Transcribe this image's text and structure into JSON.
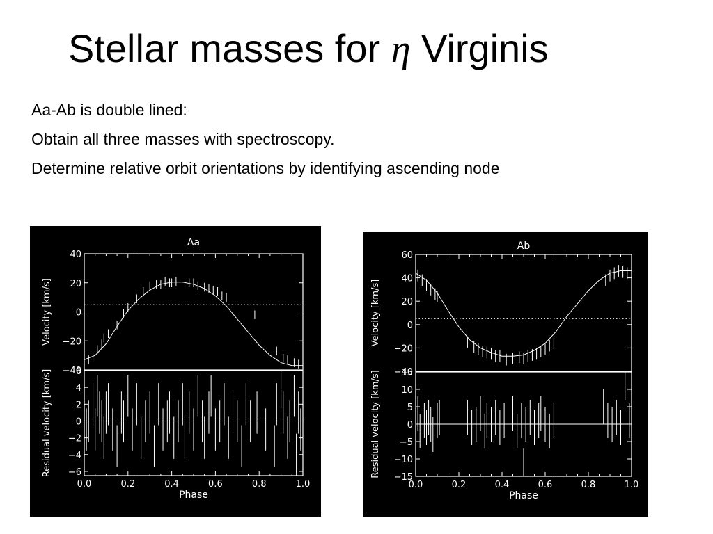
{
  "slide": {
    "title_prefix": "Stellar masses for ",
    "title_symbol": "η",
    "title_suffix": " Virginis",
    "bullets": [
      "Aa-Ab is double lined:",
      "Obtain all three masses with spectroscopy.",
      "Determine relative orbit orientations by identifying ascending node"
    ]
  },
  "colors": {
    "panel_background": "#000000",
    "foreground": "#ffffff",
    "slide_background": "#ffffff"
  },
  "chart_data": [
    {
      "type": "scatter",
      "title": "Aa",
      "xlabel": "Phase",
      "xlim": [
        0.0,
        1.0
      ],
      "x_ticks": [
        "0.0",
        "0.2",
        "0.4",
        "0.6",
        "0.8",
        "1.0"
      ],
      "top": {
        "ylabel": "Velocity [km/s]",
        "ylim": [
          -40,
          40
        ],
        "y_ticks": [
          "40",
          "20",
          "0",
          "−20",
          "−40"
        ],
        "y_tick_values": [
          40,
          20,
          0,
          -20,
          -40
        ],
        "systemic_velocity": 5,
        "model_curve": {
          "x": [
            0.0,
            0.05,
            0.1,
            0.15,
            0.2,
            0.25,
            0.3,
            0.35,
            0.4,
            0.45,
            0.5,
            0.55,
            0.6,
            0.65,
            0.7,
            0.75,
            0.8,
            0.85,
            0.9,
            0.95,
            1.0
          ],
          "y": [
            -33,
            -30,
            -22,
            -10,
            1,
            9,
            15,
            19,
            20.5,
            20.5,
            19,
            16,
            11,
            4,
            -5,
            -14,
            -23,
            -30,
            -35,
            -37,
            -37
          ]
        },
        "points": {
          "x": [
            0.02,
            0.04,
            0.06,
            0.08,
            0.09,
            0.11,
            0.15,
            0.18,
            0.2,
            0.24,
            0.27,
            0.3,
            0.33,
            0.35,
            0.37,
            0.39,
            0.4,
            0.42,
            0.48,
            0.5,
            0.52,
            0.55,
            0.57,
            0.59,
            0.61,
            0.63,
            0.65,
            0.78,
            0.88,
            0.91,
            0.93,
            0.96,
            0.98
          ],
          "y": [
            -33,
            -31,
            -26,
            -22,
            -18,
            -15,
            -9,
            -1,
            3,
            9,
            14,
            18,
            19,
            19,
            21,
            20,
            20,
            21,
            20,
            20,
            18,
            17,
            16,
            15,
            14,
            11,
            10,
            -2,
            -27,
            -32,
            -33,
            -35,
            -36
          ],
          "err": [
            3,
            3,
            3,
            3,
            3,
            3,
            3,
            3,
            3,
            3,
            3,
            3,
            3,
            3,
            3,
            3,
            3,
            3,
            3,
            3,
            3,
            3,
            3,
            3,
            3,
            3,
            3,
            3,
            3,
            3,
            3,
            3,
            3
          ]
        }
      },
      "bottom": {
        "ylabel": "Residual velocity [km/s]",
        "ylim": [
          -6.5,
          6
        ],
        "y_ticks": [
          "6",
          "4",
          "2",
          "0",
          "−2",
          "−4",
          "−6"
        ],
        "y_tick_values": [
          6,
          4,
          2,
          0,
          -2,
          -4,
          -6
        ],
        "points": {
          "x": [
            0.01,
            0.02,
            0.04,
            0.05,
            0.06,
            0.07,
            0.08,
            0.09,
            0.1,
            0.11,
            0.13,
            0.15,
            0.17,
            0.18,
            0.2,
            0.22,
            0.24,
            0.26,
            0.28,
            0.3,
            0.32,
            0.34,
            0.36,
            0.38,
            0.39,
            0.41,
            0.43,
            0.45,
            0.46,
            0.48,
            0.5,
            0.52,
            0.54,
            0.55,
            0.57,
            0.58,
            0.6,
            0.62,
            0.64,
            0.66,
            0.68,
            0.7,
            0.72,
            0.74,
            0.76,
            0.79,
            0.83,
            0.87,
            0.88,
            0.9,
            0.91,
            0.93,
            0.94,
            0.96,
            0.97,
            0.98,
            0.99
          ],
          "y": [
            -1,
            0,
            2,
            -1,
            3,
            1,
            0,
            -2,
            1,
            2,
            -1,
            -3,
            1,
            0,
            3,
            -1,
            2,
            -2,
            0,
            1,
            -3,
            2,
            -1,
            0,
            1,
            -2,
            0,
            2,
            -2,
            1,
            -1,
            3,
            0,
            -2,
            1,
            3,
            -1,
            0,
            2,
            -2,
            1,
            0,
            -3,
            2,
            0,
            1,
            -1,
            -3,
            2,
            4,
            1,
            -2,
            0,
            3,
            -4,
            1,
            -1
          ],
          "err": [
            2.5,
            2.5,
            2.5,
            2.5,
            2.5,
            2.5,
            2.5,
            2.5,
            2.5,
            2.5,
            2.5,
            2.5,
            2.5,
            2.5,
            2.5,
            2.5,
            2.5,
            2.5,
            2.5,
            2.5,
            2.5,
            2.5,
            2.5,
            2.5,
            2.5,
            2.5,
            2.5,
            2.5,
            2.5,
            2.5,
            2.5,
            2.5,
            2.5,
            2.5,
            2.5,
            2.5,
            2.5,
            2.5,
            2.5,
            2.5,
            2.5,
            2.5,
            2.5,
            2.5,
            2.5,
            2.5,
            2.5,
            2.5,
            2.5,
            2.5,
            2.5,
            2.5,
            2.5,
            2.5,
            2.5,
            2.5,
            2.5
          ]
        }
      }
    },
    {
      "type": "scatter",
      "title": "Ab",
      "xlabel": "Phase",
      "xlim": [
        0.0,
        1.0
      ],
      "x_ticks": [
        "0.0",
        "0.2",
        "0.4",
        "0.6",
        "0.8",
        "1.0"
      ],
      "top": {
        "ylabel": "Velocity [km/s]",
        "ylim": [
          -40,
          60
        ],
        "y_ticks": [
          "60",
          "40",
          "20",
          "0",
          "−20",
          "−40"
        ],
        "y_tick_values": [
          60,
          40,
          20,
          0,
          -20,
          -40
        ],
        "systemic_velocity": 5,
        "model_curve": {
          "x": [
            0.0,
            0.05,
            0.1,
            0.15,
            0.2,
            0.25,
            0.3,
            0.35,
            0.4,
            0.45,
            0.5,
            0.55,
            0.6,
            0.65,
            0.7,
            0.75,
            0.8,
            0.85,
            0.9,
            0.95,
            1.0
          ],
          "y": [
            44,
            38,
            27,
            12,
            -2,
            -13,
            -20,
            -24,
            -27,
            -27,
            -26,
            -22,
            -16,
            -6,
            7,
            18,
            29,
            38,
            44,
            46,
            46
          ],
          "note": ""
        },
        "points": {
          "x": [
            0.01,
            0.03,
            0.05,
            0.07,
            0.09,
            0.1,
            0.24,
            0.27,
            0.29,
            0.31,
            0.33,
            0.35,
            0.37,
            0.39,
            0.42,
            0.45,
            0.48,
            0.5,
            0.52,
            0.54,
            0.56,
            0.58,
            0.6,
            0.62,
            0.64,
            0.88,
            0.9,
            0.92,
            0.94,
            0.96,
            0.98
          ],
          "y": [
            42,
            38,
            34,
            30,
            26,
            24,
            -15,
            -19,
            -21,
            -23,
            -24,
            -25,
            -27,
            -27,
            -30,
            -29,
            -28,
            -29,
            -27,
            -26,
            -25,
            -23,
            -21,
            -18,
            -16,
            38,
            42,
            44,
            46,
            45,
            44
          ],
          "err": [
            5,
            5,
            5,
            5,
            5,
            5,
            5,
            5,
            5,
            5,
            5,
            5,
            5,
            5,
            5,
            5,
            5,
            5,
            5,
            5,
            5,
            5,
            5,
            5,
            5,
            5,
            5,
            5,
            5,
            5,
            5
          ]
        }
      },
      "bottom": {
        "ylabel": "Residual velocity [km/s]",
        "ylim": [
          -15,
          15
        ],
        "y_ticks": [
          "15",
          "10",
          "5",
          "0",
          "−5",
          "−10",
          "−15"
        ],
        "y_tick_values": [
          15,
          10,
          5,
          0,
          -5,
          -10,
          -15
        ],
        "points": {
          "x": [
            0.01,
            0.02,
            0.04,
            0.05,
            0.06,
            0.07,
            0.08,
            0.1,
            0.11,
            0.24,
            0.26,
            0.28,
            0.3,
            0.32,
            0.33,
            0.35,
            0.37,
            0.39,
            0.41,
            0.45,
            0.47,
            0.49,
            0.5,
            0.51,
            0.53,
            0.55,
            0.57,
            0.58,
            0.6,
            0.62,
            0.64,
            0.87,
            0.89,
            0.91,
            0.93,
            0.95,
            0.97,
            0.99
          ],
          "y": [
            3,
            -2,
            1,
            -1,
            2,
            0,
            -3,
            1,
            2,
            2,
            -1,
            0,
            3,
            -2,
            1,
            0,
            2,
            -1,
            1,
            3,
            -2,
            1,
            -12,
            0,
            2,
            -1,
            1,
            3,
            0,
            -2,
            1,
            5,
            1,
            0,
            2,
            -1,
            12,
            1
          ],
          "err": [
            5,
            5,
            5,
            5,
            5,
            5,
            5,
            5,
            5,
            5,
            5,
            5,
            5,
            5,
            5,
            5,
            5,
            5,
            5,
            5,
            5,
            5,
            5,
            5,
            5,
            5,
            5,
            5,
            5,
            5,
            5,
            5,
            5,
            5,
            5,
            5,
            5,
            5
          ]
        }
      }
    }
  ]
}
